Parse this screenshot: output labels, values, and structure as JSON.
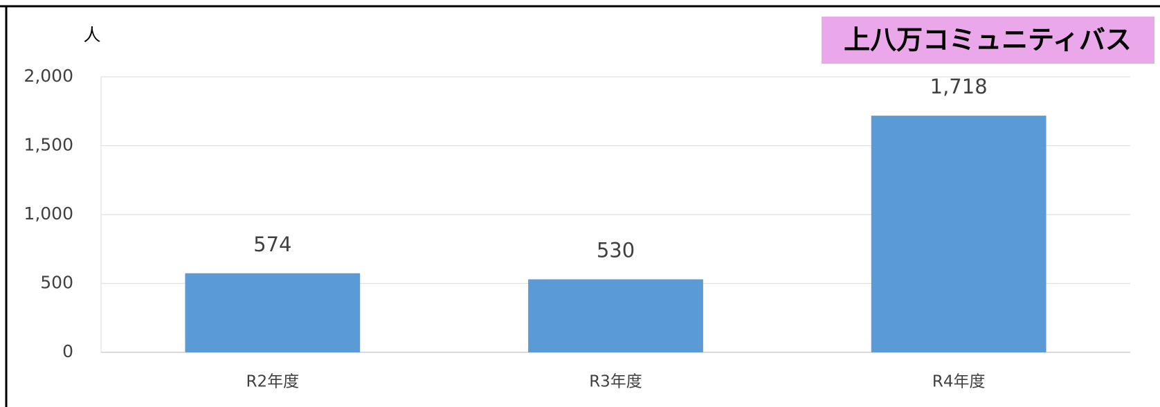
{
  "chart_data": {
    "type": "bar",
    "title": "上八万コミュニティバス",
    "y_label": "人",
    "categories": [
      "R2年度",
      "R3年度",
      "R4年度"
    ],
    "values": [
      574,
      530,
      1718
    ],
    "value_labels": [
      "574",
      "530",
      "1,718"
    ],
    "color": "#5b9bd5",
    "title_background": "#eaa8ea",
    "ylim": [
      0,
      2000
    ],
    "yticks": [
      0,
      500,
      {
        "value": 1000,
        "label": "1,000"
      },
      {
        "value": 1500,
        "label": "1,500"
      },
      {
        "value": 2000,
        "label": "2,000"
      }
    ],
    "grid": true
  }
}
